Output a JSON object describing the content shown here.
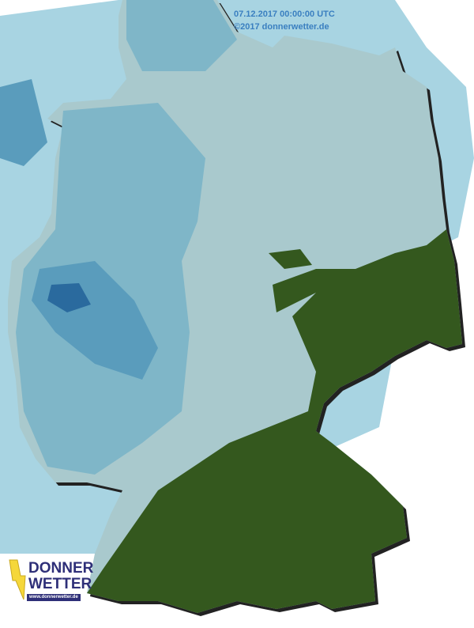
{
  "timestamp": "07.12.2017 00:00:00 UTC",
  "copyright": "©2017 donnerwetter.de",
  "logo": {
    "line1": "DONNER",
    "line2": "WETTER",
    "url": "www.donnerwetter.de"
  },
  "colors": {
    "land": "#a9c9cd",
    "sea": "#a8d4e2",
    "precip_light": "#7fb6c8",
    "precip_mid": "#5a9cbc",
    "precip_heavy": "#2a6a9e",
    "snow_green": "#34581e",
    "logo_yellow": "#f5d73a",
    "logo_blue": "#2e2f78"
  }
}
